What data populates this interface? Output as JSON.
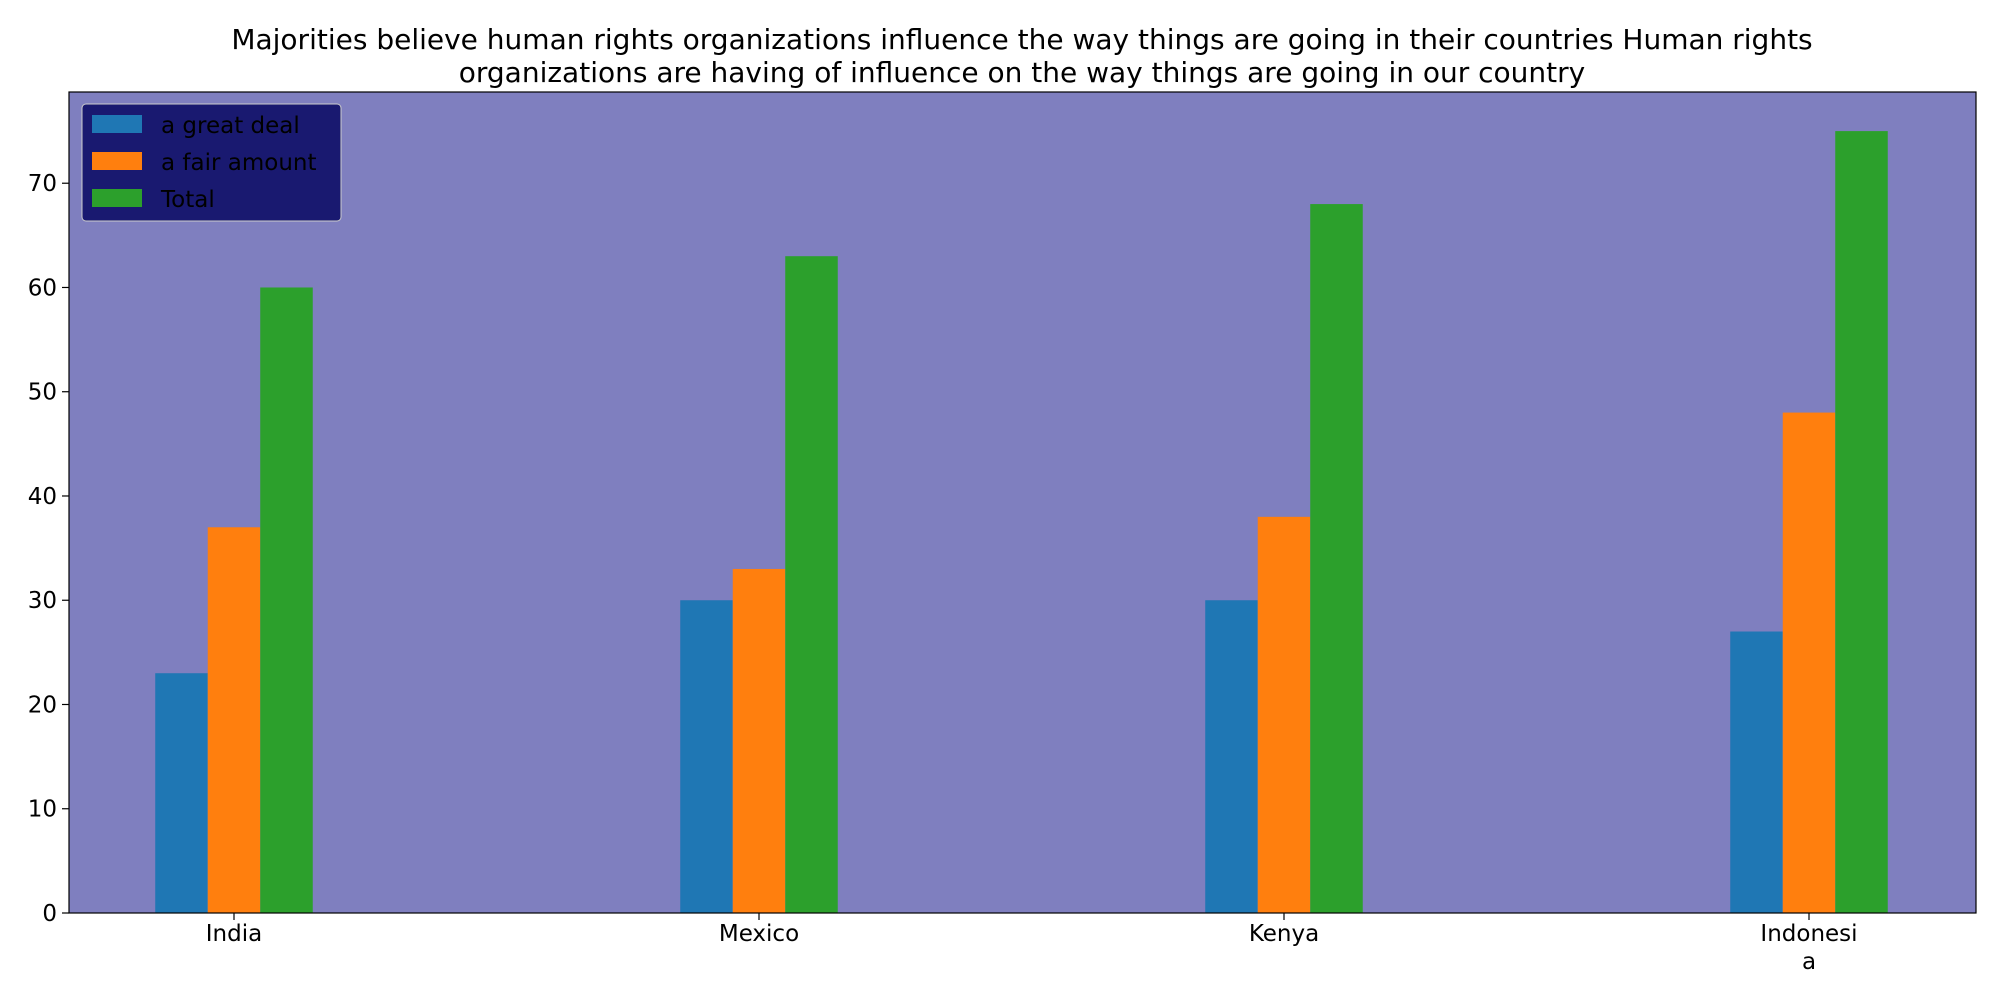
{
  "chart_data": {
    "type": "bar",
    "title_lines": [
      "Majorities believe human rights organizations influence the way things are going in their countries Human rights",
      "organizations are having of influence on the way things are going in our country"
    ],
    "categories": [
      [
        "India"
      ],
      [
        "Mexico"
      ],
      [
        "Kenya"
      ],
      [
        "Indonesi",
        "a"
      ]
    ],
    "series": [
      {
        "name": "a great deal",
        "color": "#1f77b4",
        "values": [
          23,
          30,
          30,
          27
        ]
      },
      {
        "name": "a fair amount",
        "color": "#ff7f0e",
        "values": [
          37,
          33,
          38,
          48
        ]
      },
      {
        "name": "Total",
        "color": "#2ca02c",
        "values": [
          60,
          63,
          68,
          75
        ]
      }
    ],
    "xlabel": "",
    "ylabel": "",
    "ylim": [
      0,
      78.75
    ],
    "yticks": [
      0,
      10,
      20,
      30,
      40,
      50,
      60,
      70
    ],
    "grid": false,
    "legend_position": "top-left",
    "plot_background": "#7f7fbf",
    "legend_background": "#191970"
  }
}
